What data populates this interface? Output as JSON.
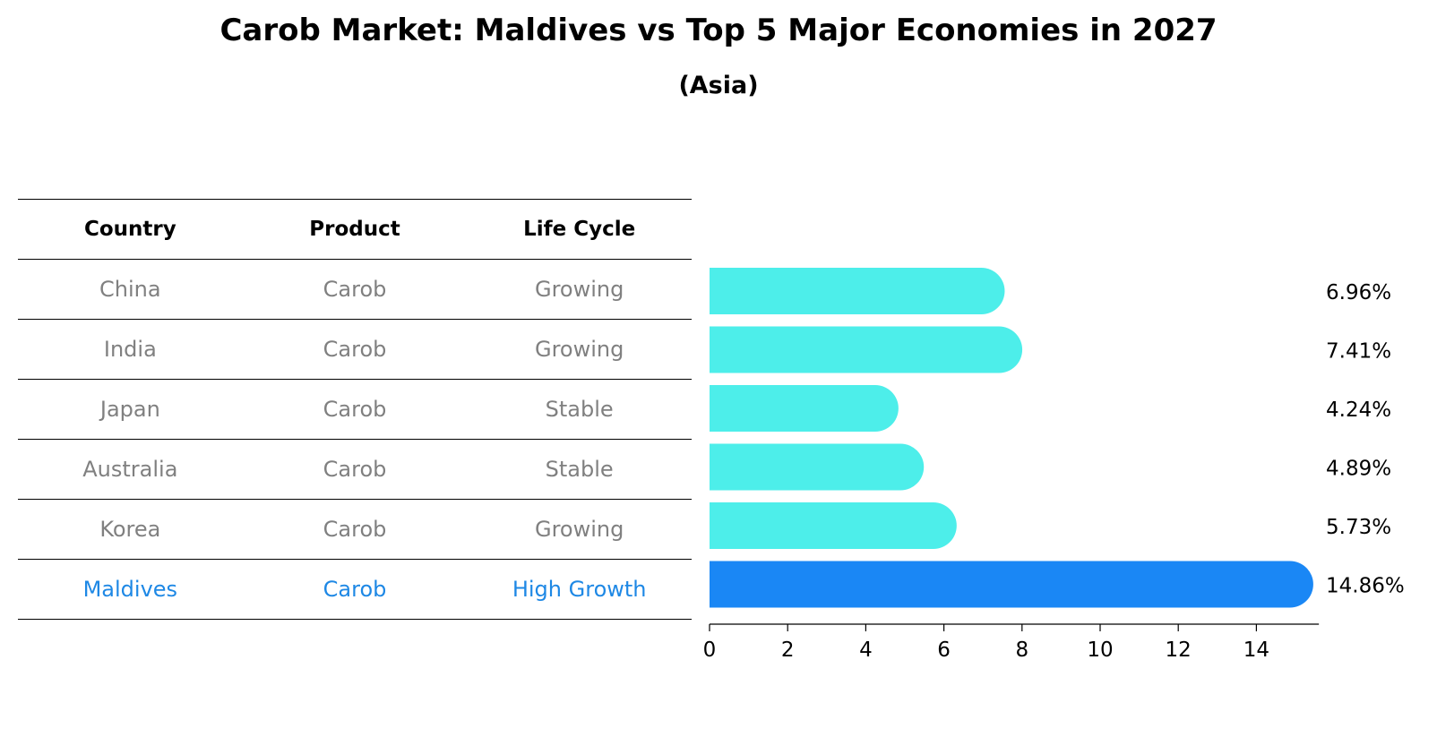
{
  "title": "Carob Market: Maldives vs Top 5 Major Economies in 2027",
  "subtitle": "(Asia)",
  "table": {
    "headers": [
      "Country",
      "Product",
      "Life Cycle"
    ],
    "rows": [
      {
        "country": "China",
        "product": "Carob",
        "life_cycle": "Growing"
      },
      {
        "country": "India",
        "product": "Carob",
        "life_cycle": "Growing"
      },
      {
        "country": "Japan",
        "product": "Carob",
        "life_cycle": "Stable"
      },
      {
        "country": "Australia",
        "product": "Carob",
        "life_cycle": "Stable"
      },
      {
        "country": "Korea",
        "product": "Carob",
        "life_cycle": "Growing"
      },
      {
        "country": "Maldives",
        "product": "Carob",
        "life_cycle": "High Growth"
      }
    ]
  },
  "colors": {
    "bar": "#4deeea",
    "highlight_bar": "#1a87f5",
    "highlight_text": "#1e88e5",
    "muted_text": "#808080"
  },
  "chart_data": {
    "type": "bar",
    "orientation": "horizontal",
    "categories": [
      "China",
      "India",
      "Japan",
      "Australia",
      "Korea",
      "Maldives"
    ],
    "values": [
      6.96,
      7.41,
      4.24,
      4.89,
      5.73,
      14.86
    ],
    "value_labels": [
      "6.96%",
      "7.41%",
      "4.24%",
      "4.89%",
      "5.73%",
      "14.86%"
    ],
    "highlight": "Maldives",
    "xlim": [
      0,
      15.6
    ],
    "xticks": [
      0,
      2,
      4,
      6,
      8,
      10,
      12,
      14
    ],
    "xlabel": "",
    "ylabel": "",
    "grid": false
  }
}
